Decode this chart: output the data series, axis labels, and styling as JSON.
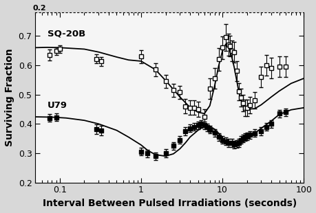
{
  "xlabel": "Interval Between Pulsed Irradiations (seconds)",
  "ylabel": "Surviving Fraction",
  "xlim": [
    0.05,
    100
  ],
  "ylim": [
    0.2,
    0.78
  ],
  "yticks": [
    0.2,
    0.3,
    0.4,
    0.5,
    0.6,
    0.7
  ],
  "label_sq20b": "SQ-20B",
  "label_v79": "U79",
  "sq20b_data": [
    [
      0.075,
      0.635,
      0.018
    ],
    [
      0.09,
      0.648,
      0.013
    ],
    [
      0.1,
      0.655,
      0.012
    ],
    [
      0.28,
      0.622,
      0.016
    ],
    [
      0.32,
      0.613,
      0.016
    ],
    [
      1.0,
      0.63,
      0.022
    ],
    [
      1.5,
      0.585,
      0.022
    ],
    [
      2.0,
      0.545,
      0.022
    ],
    [
      2.5,
      0.515,
      0.022
    ],
    [
      3.0,
      0.508,
      0.022
    ],
    [
      3.5,
      0.46,
      0.025
    ],
    [
      4.0,
      0.455,
      0.025
    ],
    [
      4.5,
      0.455,
      0.025
    ],
    [
      5.0,
      0.45,
      0.025
    ],
    [
      6.0,
      0.425,
      0.025
    ],
    [
      7.0,
      0.52,
      0.035
    ],
    [
      8.0,
      0.555,
      0.035
    ],
    [
      9.0,
      0.62,
      0.038
    ],
    [
      10.0,
      0.66,
      0.038
    ],
    [
      11.0,
      0.695,
      0.045
    ],
    [
      12.0,
      0.67,
      0.038
    ],
    [
      12.5,
      0.665,
      0.035
    ],
    [
      13.0,
      0.65,
      0.035
    ],
    [
      14.0,
      0.645,
      0.035
    ],
    [
      15.0,
      0.58,
      0.035
    ],
    [
      16.0,
      0.51,
      0.03
    ],
    [
      17.0,
      0.49,
      0.03
    ],
    [
      18.0,
      0.47,
      0.028
    ],
    [
      19.0,
      0.455,
      0.028
    ],
    [
      20.0,
      0.455,
      0.028
    ],
    [
      22.0,
      0.465,
      0.028
    ],
    [
      25.0,
      0.48,
      0.028
    ],
    [
      30.0,
      0.56,
      0.035
    ],
    [
      35.0,
      0.6,
      0.035
    ],
    [
      40.0,
      0.59,
      0.035
    ],
    [
      50.0,
      0.595,
      0.035
    ],
    [
      60.0,
      0.595,
      0.035
    ]
  ],
  "sq20b_curve": [
    [
      0.05,
      0.66
    ],
    [
      0.07,
      0.661
    ],
    [
      0.1,
      0.66
    ],
    [
      0.2,
      0.655
    ],
    [
      0.3,
      0.645
    ],
    [
      0.5,
      0.628
    ],
    [
      0.7,
      0.618
    ],
    [
      1.0,
      0.614
    ],
    [
      1.5,
      0.585
    ],
    [
      2.0,
      0.548
    ],
    [
      3.0,
      0.492
    ],
    [
      4.0,
      0.456
    ],
    [
      5.0,
      0.44
    ],
    [
      6.0,
      0.435
    ],
    [
      7.0,
      0.462
    ],
    [
      8.0,
      0.528
    ],
    [
      9.0,
      0.598
    ],
    [
      10.0,
      0.648
    ],
    [
      11.0,
      0.672
    ],
    [
      12.0,
      0.66
    ],
    [
      13.0,
      0.63
    ],
    [
      14.0,
      0.592
    ],
    [
      15.0,
      0.548
    ],
    [
      16.0,
      0.506
    ],
    [
      18.0,
      0.462
    ],
    [
      20.0,
      0.45
    ],
    [
      25.0,
      0.452
    ],
    [
      30.0,
      0.465
    ],
    [
      40.0,
      0.492
    ],
    [
      50.0,
      0.512
    ],
    [
      70.0,
      0.538
    ],
    [
      100.0,
      0.555
    ]
  ],
  "v79_data": [
    [
      0.075,
      0.42,
      0.013
    ],
    [
      0.09,
      0.422,
      0.013
    ],
    [
      0.28,
      0.382,
      0.016
    ],
    [
      0.32,
      0.378,
      0.016
    ],
    [
      1.0,
      0.305,
      0.013
    ],
    [
      1.2,
      0.299,
      0.013
    ],
    [
      1.5,
      0.29,
      0.013
    ],
    [
      2.0,
      0.3,
      0.013
    ],
    [
      2.5,
      0.325,
      0.013
    ],
    [
      3.0,
      0.345,
      0.013
    ],
    [
      3.5,
      0.375,
      0.013
    ],
    [
      4.0,
      0.385,
      0.013
    ],
    [
      4.5,
      0.39,
      0.013
    ],
    [
      5.0,
      0.395,
      0.013
    ],
    [
      5.5,
      0.4,
      0.013
    ],
    [
      6.0,
      0.395,
      0.013
    ],
    [
      6.5,
      0.388,
      0.013
    ],
    [
      7.0,
      0.38,
      0.013
    ],
    [
      8.0,
      0.37,
      0.013
    ],
    [
      9.0,
      0.355,
      0.013
    ],
    [
      10.0,
      0.345,
      0.013
    ],
    [
      11.0,
      0.34,
      0.013
    ],
    [
      12.0,
      0.335,
      0.013
    ],
    [
      13.0,
      0.335,
      0.013
    ],
    [
      14.0,
      0.33,
      0.013
    ],
    [
      15.0,
      0.332,
      0.013
    ],
    [
      16.0,
      0.335,
      0.013
    ],
    [
      17.0,
      0.345,
      0.013
    ],
    [
      18.0,
      0.35,
      0.013
    ],
    [
      19.0,
      0.355,
      0.013
    ],
    [
      20.0,
      0.358,
      0.013
    ],
    [
      22.0,
      0.363,
      0.013
    ],
    [
      25.0,
      0.368,
      0.013
    ],
    [
      30.0,
      0.375,
      0.013
    ],
    [
      35.0,
      0.39,
      0.013
    ],
    [
      40.0,
      0.4,
      0.013
    ],
    [
      50.0,
      0.435,
      0.013
    ],
    [
      60.0,
      0.44,
      0.013
    ]
  ],
  "v79_curve": [
    [
      0.05,
      0.424
    ],
    [
      0.08,
      0.423
    ],
    [
      0.12,
      0.42
    ],
    [
      0.2,
      0.412
    ],
    [
      0.3,
      0.4
    ],
    [
      0.5,
      0.378
    ],
    [
      0.7,
      0.355
    ],
    [
      1.0,
      0.328
    ],
    [
      1.2,
      0.31
    ],
    [
      1.5,
      0.295
    ],
    [
      2.0,
      0.29
    ],
    [
      2.5,
      0.298
    ],
    [
      3.0,
      0.315
    ],
    [
      3.5,
      0.335
    ],
    [
      4.0,
      0.355
    ],
    [
      5.0,
      0.378
    ],
    [
      6.0,
      0.393
    ],
    [
      7.0,
      0.392
    ],
    [
      8.0,
      0.382
    ],
    [
      9.0,
      0.368
    ],
    [
      10.0,
      0.352
    ],
    [
      11.0,
      0.34
    ],
    [
      12.0,
      0.332
    ],
    [
      13.0,
      0.33
    ],
    [
      15.0,
      0.33
    ],
    [
      18.0,
      0.338
    ],
    [
      20.0,
      0.348
    ],
    [
      25.0,
      0.368
    ],
    [
      30.0,
      0.385
    ],
    [
      40.0,
      0.41
    ],
    [
      50.0,
      0.432
    ],
    [
      70.0,
      0.448
    ],
    [
      100.0,
      0.455
    ]
  ],
  "top_clipped_label": "0.2",
  "bg_color": "#f0f0f0",
  "marker_color_open": "#ffffff",
  "marker_color_filled": "#000000",
  "line_color": "#000000",
  "marker_edge_color": "#000000"
}
